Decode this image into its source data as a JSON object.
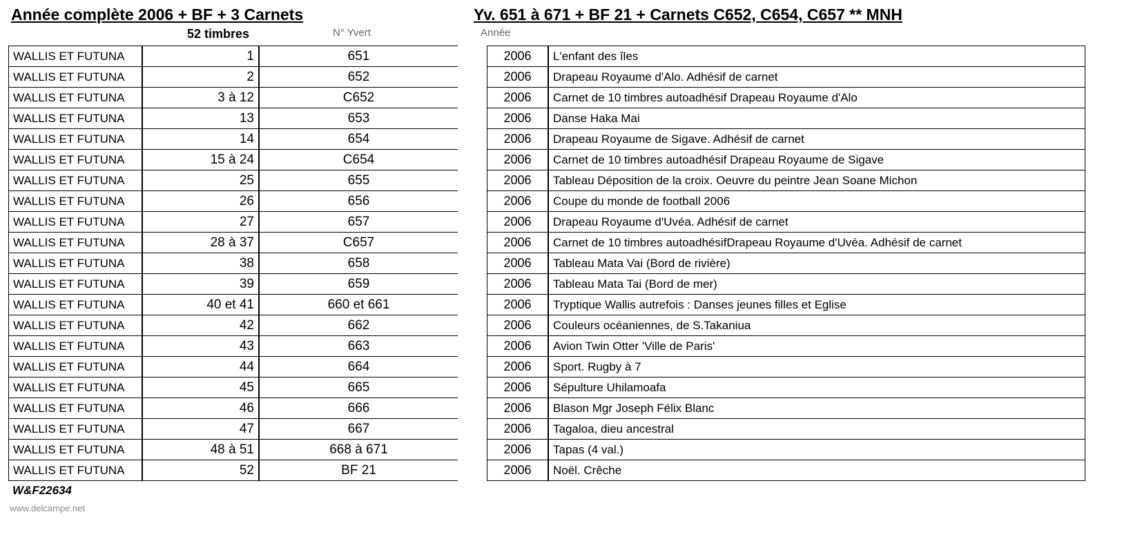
{
  "header": {
    "title_left": "Année complète 2006 + BF + 3 Carnets",
    "title_right": "Yv. 651 à 671 + BF 21 + Carnets C652, C654, C657    ** MNH",
    "stamp_count": "52 timbres",
    "col_yvert": "N° Yvert",
    "col_year": "Année"
  },
  "rows": [
    {
      "country": "WALLIS ET FUTUNA",
      "seq": "1",
      "yvert": "651",
      "year": "2006",
      "desc": "L'enfant des îles"
    },
    {
      "country": "WALLIS ET FUTUNA",
      "seq": "2",
      "yvert": "652",
      "year": "2006",
      "desc": "Drapeau Royaume d'Alo. Adhésif de carnet"
    },
    {
      "country": "WALLIS ET FUTUNA",
      "seq": "3 à 12",
      "yvert": "C652",
      "year": "2006",
      "desc": "Carnet de 10 timbres autoadhésif Drapeau Royaume d'Alo"
    },
    {
      "country": "WALLIS ET FUTUNA",
      "seq": "13",
      "yvert": "653",
      "year": "2006",
      "desc": "Danse Haka Mai"
    },
    {
      "country": "WALLIS ET FUTUNA",
      "seq": "14",
      "yvert": "654",
      "year": "2006",
      "desc": "Drapeau Royaume de Sigave. Adhésif de carnet"
    },
    {
      "country": "WALLIS ET FUTUNA",
      "seq": "15 à 24",
      "yvert": "C654",
      "year": "2006",
      "desc": "Carnet de 10 timbres autoadhésif Drapeau Royaume de Sigave"
    },
    {
      "country": "WALLIS ET FUTUNA",
      "seq": "25",
      "yvert": "655",
      "year": "2006",
      "desc": "Tableau Déposition de la croix. Oeuvre du peintre Jean Soane Michon"
    },
    {
      "country": "WALLIS ET FUTUNA",
      "seq": "26",
      "yvert": "656",
      "year": "2006",
      "desc": "Coupe du monde de football 2006"
    },
    {
      "country": "WALLIS ET FUTUNA",
      "seq": "27",
      "yvert": "657",
      "year": "2006",
      "desc": "Drapeau Royaume d'Uvéa. Adhésif de carnet"
    },
    {
      "country": "WALLIS ET FUTUNA",
      "seq": "28 à 37",
      "yvert": "C657",
      "year": "2006",
      "desc": "Carnet de 10 timbres autoadhésifDrapeau Royaume d'Uvéa. Adhésif de carnet"
    },
    {
      "country": "WALLIS ET FUTUNA",
      "seq": "38",
      "yvert": "658",
      "year": "2006",
      "desc": "Tableau Mata Vai (Bord de rivière)"
    },
    {
      "country": "WALLIS ET FUTUNA",
      "seq": "39",
      "yvert": "659",
      "year": "2006",
      "desc": "Tableau Mata Tai (Bord de mer)"
    },
    {
      "country": "WALLIS ET FUTUNA",
      "seq": "40 et 41",
      "yvert": "660 et 661",
      "year": "2006",
      "desc": "Tryptique Wallis autrefois : Danses jeunes filles et Eglise"
    },
    {
      "country": "WALLIS ET FUTUNA",
      "seq": "42",
      "yvert": "662",
      "year": "2006",
      "desc": "Couleurs océaniennes, de S.Takaniua"
    },
    {
      "country": "WALLIS ET FUTUNA",
      "seq": "43",
      "yvert": "663",
      "year": "2006",
      "desc": "Avion Twin Otter 'Ville de Paris'"
    },
    {
      "country": "WALLIS ET FUTUNA",
      "seq": "44",
      "yvert": "664",
      "year": "2006",
      "desc": "Sport. Rugby à 7"
    },
    {
      "country": "WALLIS ET FUTUNA",
      "seq": "45",
      "yvert": "665",
      "year": "2006",
      "desc": "Sépulture Uhilamoafa"
    },
    {
      "country": "WALLIS ET FUTUNA",
      "seq": "46",
      "yvert": "666",
      "year": "2006",
      "desc": "Blason Mgr Joseph Félix Blanc"
    },
    {
      "country": "WALLIS ET FUTUNA",
      "seq": "47",
      "yvert": "667",
      "year": "2006",
      "desc": "Tagaloa, dieu ancestral"
    },
    {
      "country": "WALLIS ET FUTUNA",
      "seq": "48 à 51",
      "yvert": "668 à 671",
      "year": "2006",
      "desc": "Tapas (4 val.)"
    },
    {
      "country": "WALLIS ET FUTUNA",
      "seq": "52",
      "yvert": "BF 21",
      "year": "2006",
      "desc": "Noël. Crêche"
    }
  ],
  "reference": "W&F22634",
  "footer_url": "www.delcampe.net"
}
